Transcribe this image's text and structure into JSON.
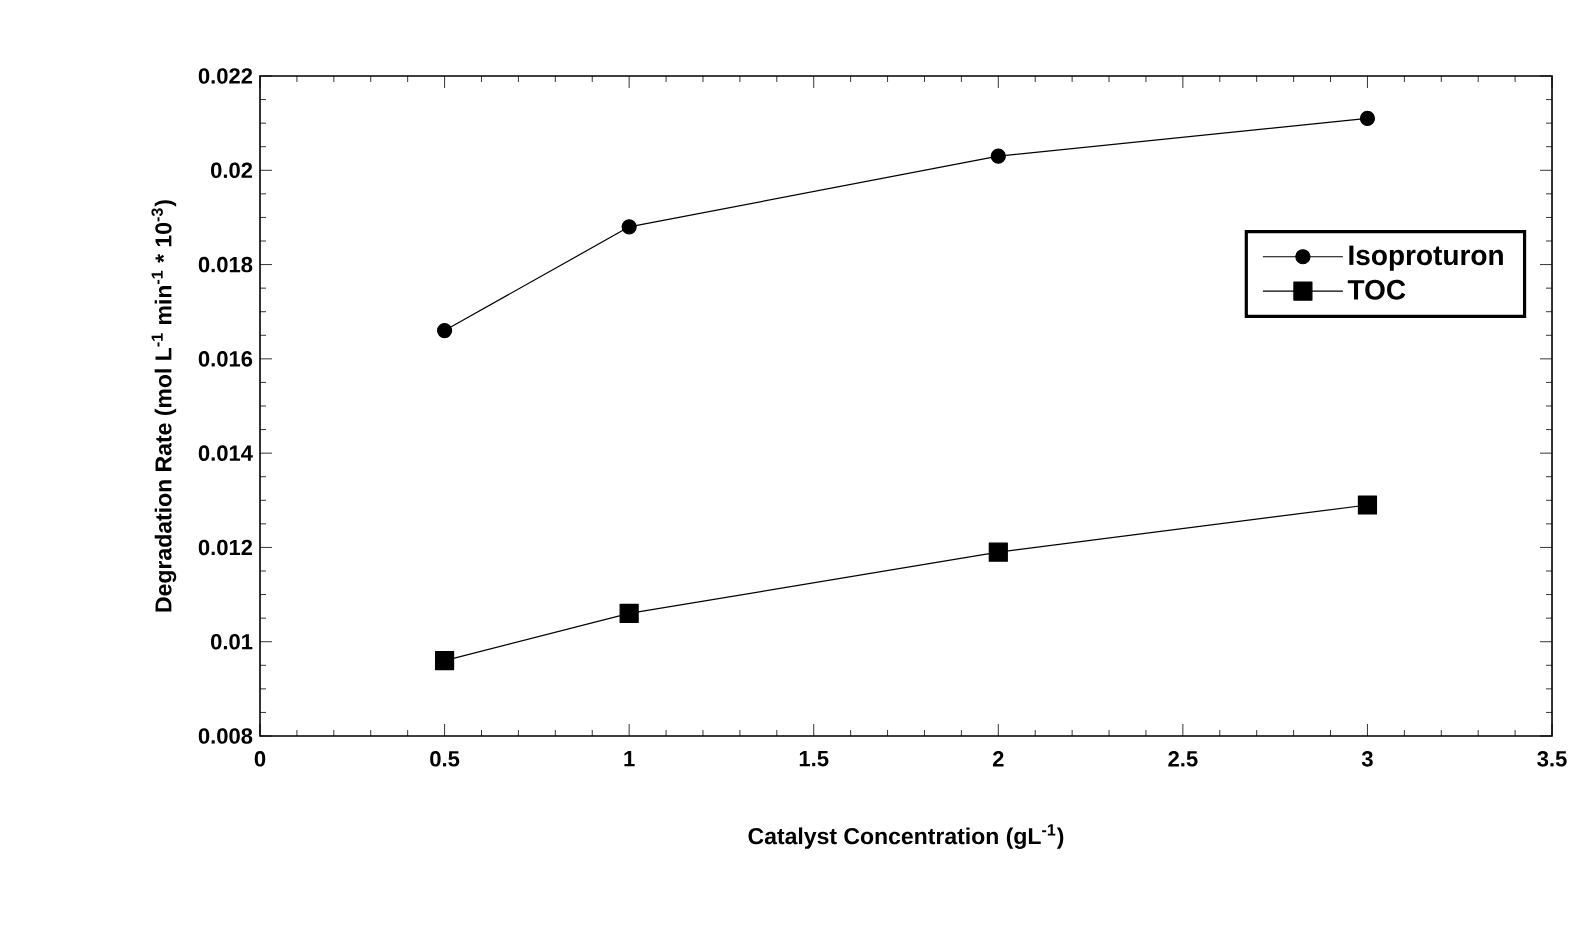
{
  "chart_data": {
    "type": "line",
    "xlabel": "Catalyst Concentration (gL$^{-1}$)",
    "ylabel": "Degradation Rate (mol L$^{-1}$ min$^{-1}$ * 10$^{-3}$)",
    "x": [
      0.5,
      1,
      2,
      3
    ],
    "series": [
      {
        "name": "Isoproturon",
        "color": "#000000",
        "marker": "circle",
        "values": [
          0.0166,
          0.0188,
          0.0203,
          0.0211
        ]
      },
      {
        "name": "TOC",
        "color": "#000000",
        "marker": "square",
        "values": [
          0.0096,
          0.0106,
          0.0119,
          0.0129
        ]
      }
    ],
    "xlim": [
      0,
      3.5
    ],
    "xticks": [
      0,
      0.5,
      1,
      1.5,
      2,
      2.5,
      3,
      3.5
    ],
    "ylim": [
      0.008,
      0.022
    ],
    "yticks": [
      0.008,
      0.01,
      0.012,
      0.014,
      0.016,
      0.018,
      0.02,
      0.022
    ],
    "legend": "right",
    "grid": false,
    "line_style": "solid"
  }
}
